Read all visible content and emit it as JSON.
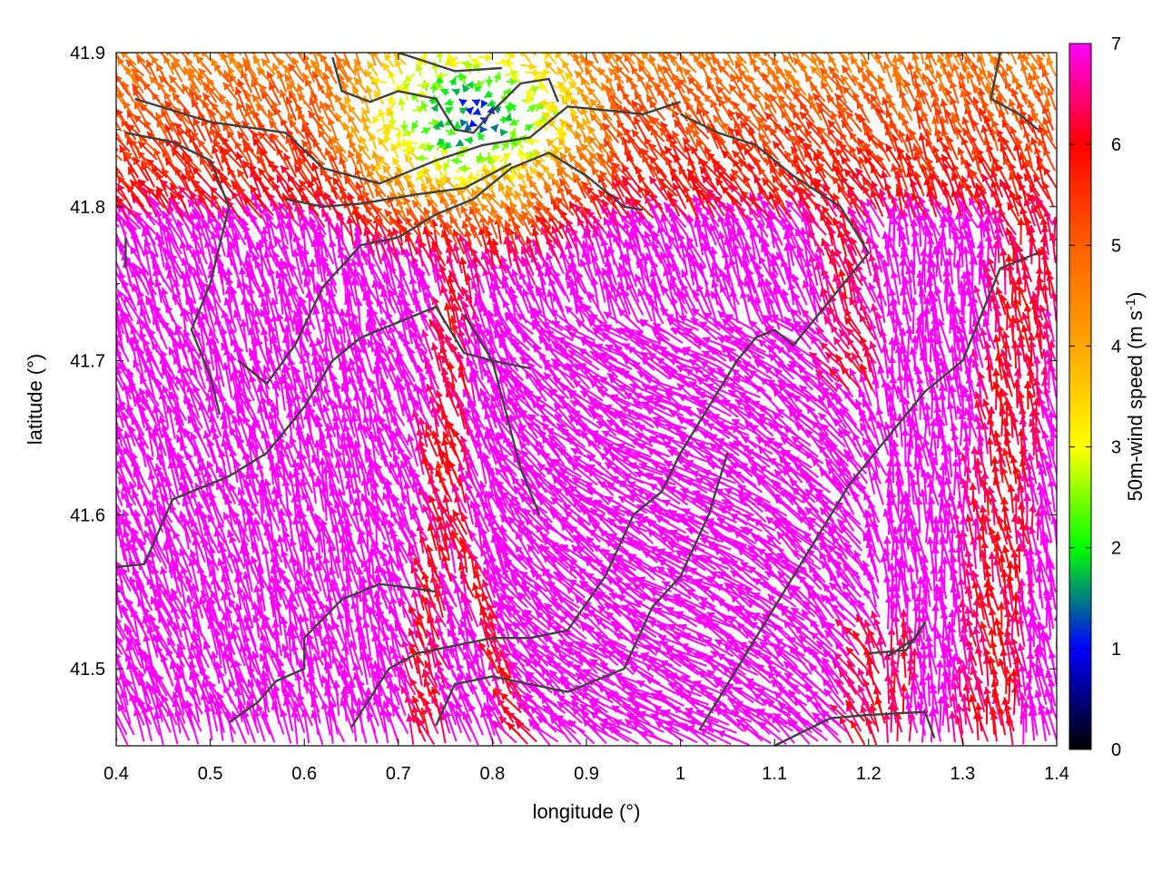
{
  "chart_data": {
    "type": "vector-field",
    "xlabel": "longitude (°)",
    "ylabel": "latitude (°)",
    "colorbar_label": {
      "main": "50m-wind speed (m s",
      "sup": "-1",
      "close": ")"
    },
    "xlim": [
      0.4,
      1.4
    ],
    "ylim": [
      41.45,
      41.9
    ],
    "xticks": [
      "0.4",
      "0.5",
      "0.6",
      "0.7",
      "0.8",
      "0.9",
      "1",
      "1.1",
      "1.2",
      "1.3",
      "1.4"
    ],
    "yticks": [
      "41.5",
      "41.6",
      "41.7",
      "41.8",
      "41.9"
    ],
    "cbticks": [
      "0",
      "1",
      "2",
      "3",
      "4",
      "5",
      "6",
      "7"
    ],
    "cbrange": [
      0,
      7
    ],
    "colormap": [
      "#000000",
      "#0000ff",
      "#00ff00",
      "#ffff00",
      "#ffa500",
      "#ff6000",
      "#ff0000",
      "#ff00ff"
    ],
    "contour_color": "#404040",
    "contours": [
      [
        [
          0.42,
          41.87
        ],
        [
          0.5,
          41.855
        ],
        [
          0.58,
          41.848
        ],
        [
          0.62,
          41.825
        ],
        [
          0.68,
          41.815
        ],
        [
          0.74,
          41.83
        ],
        [
          0.79,
          41.84
        ],
        [
          0.84,
          41.845
        ],
        [
          0.88,
          41.865
        ],
        [
          0.93,
          41.862
        ],
        [
          0.96,
          41.86
        ],
        [
          1.0,
          41.868
        ]
      ],
      [
        [
          0.41,
          41.848
        ],
        [
          0.46,
          41.842
        ],
        [
          0.5,
          41.83
        ],
        [
          0.52,
          41.8
        ],
        [
          0.5,
          41.75
        ],
        [
          0.48,
          41.72
        ],
        [
          0.5,
          41.69
        ],
        [
          0.51,
          41.665
        ]
      ],
      [
        [
          0.53,
          41.7
        ],
        [
          0.56,
          41.685
        ],
        [
          0.59,
          41.71
        ],
        [
          0.62,
          41.748
        ],
        [
          0.66,
          41.775
        ],
        [
          0.7,
          41.78
        ],
        [
          0.74,
          41.795
        ],
        [
          0.78,
          41.805
        ],
        [
          0.82,
          41.825
        ],
        [
          0.86,
          41.835
        ],
        [
          0.9,
          41.82
        ],
        [
          0.94,
          41.8
        ],
        [
          0.96,
          41.798
        ]
      ],
      [
        [
          0.58,
          41.805
        ],
        [
          0.62,
          41.8
        ],
        [
          0.66,
          41.802
        ],
        [
          0.72,
          41.808
        ],
        [
          0.77,
          41.812
        ],
        [
          0.82,
          41.828
        ]
      ],
      [
        [
          0.63,
          41.897
        ],
        [
          0.64,
          41.875
        ],
        [
          0.67,
          41.868
        ],
        [
          0.7,
          41.875
        ],
        [
          0.74,
          41.87
        ],
        [
          0.76,
          41.85
        ],
        [
          0.78,
          41.848
        ],
        [
          0.8,
          41.862
        ],
        [
          0.83,
          41.88
        ],
        [
          0.86,
          41.883
        ],
        [
          0.87,
          41.868
        ]
      ],
      [
        [
          0.7,
          41.9
        ],
        [
          0.76,
          41.888
        ],
        [
          0.81,
          41.89
        ]
      ],
      [
        [
          0.4,
          41.566
        ],
        [
          0.43,
          41.568
        ],
        [
          0.46,
          41.61
        ],
        [
          0.52,
          41.625
        ],
        [
          0.56,
          41.64
        ],
        [
          0.6,
          41.67
        ],
        [
          0.63,
          41.7
        ],
        [
          0.66,
          41.715
        ],
        [
          0.7,
          41.725
        ],
        [
          0.74,
          41.735
        ],
        [
          0.77,
          41.705
        ],
        [
          0.8,
          41.7
        ],
        [
          0.84,
          41.695
        ]
      ],
      [
        [
          0.52,
          41.465
        ],
        [
          0.55,
          41.478
        ],
        [
          0.57,
          41.492
        ],
        [
          0.6,
          41.5
        ],
        [
          0.6,
          41.52
        ],
        [
          0.64,
          41.545
        ],
        [
          0.68,
          41.555
        ],
        [
          0.72,
          41.552
        ],
        [
          0.74,
          41.55
        ]
      ],
      [
        [
          0.65,
          41.462
        ],
        [
          0.69,
          41.5
        ],
        [
          0.72,
          41.51
        ],
        [
          0.76,
          41.515
        ],
        [
          0.8,
          41.52
        ],
        [
          0.84,
          41.52
        ],
        [
          0.88,
          41.525
        ],
        [
          0.92,
          41.56
        ],
        [
          0.95,
          41.6
        ],
        [
          0.98,
          41.615
        ],
        [
          1.0,
          41.64
        ],
        [
          1.02,
          41.66
        ],
        [
          1.04,
          41.68
        ],
        [
          1.06,
          41.7
        ],
        [
          1.08,
          41.715
        ],
        [
          1.1,
          41.72
        ],
        [
          1.12,
          41.71
        ],
        [
          1.16,
          41.74
        ],
        [
          1.2,
          41.77
        ],
        [
          1.17,
          41.8
        ],
        [
          1.12,
          41.82
        ],
        [
          1.08,
          41.84
        ],
        [
          1.04,
          41.848
        ],
        [
          1.0,
          41.86
        ]
      ],
      [
        [
          0.85,
          41.6
        ],
        [
          0.83,
          41.63
        ],
        [
          0.8,
          41.7
        ],
        [
          0.77,
          41.73
        ]
      ],
      [
        [
          0.74,
          41.463
        ],
        [
          0.76,
          41.49
        ],
        [
          0.8,
          41.495
        ],
        [
          0.84,
          41.49
        ],
        [
          0.88,
          41.485
        ],
        [
          0.94,
          41.5
        ],
        [
          0.97,
          41.54
        ],
        [
          1.0,
          41.56
        ],
        [
          1.03,
          41.6
        ],
        [
          1.05,
          41.64
        ]
      ],
      [
        [
          1.02,
          41.46
        ],
        [
          1.06,
          41.5
        ],
        [
          1.1,
          41.54
        ],
        [
          1.14,
          41.58
        ],
        [
          1.18,
          41.62
        ],
        [
          1.22,
          41.65
        ],
        [
          1.26,
          41.68
        ],
        [
          1.3,
          41.7
        ],
        [
          1.32,
          41.73
        ],
        [
          1.34,
          41.76
        ],
        [
          1.38,
          41.77
        ]
      ],
      [
        [
          1.1,
          41.45
        ],
        [
          1.16,
          41.468
        ],
        [
          1.2,
          41.47
        ],
        [
          1.26,
          41.472
        ],
        [
          1.27,
          41.455
        ]
      ],
      [
        [
          1.2,
          41.51
        ],
        [
          1.24,
          41.512
        ],
        [
          1.26,
          41.53
        ],
        [
          1.25,
          41.52
        ],
        [
          1.22,
          41.508
        ]
      ],
      [
        [
          1.34,
          41.9
        ],
        [
          1.33,
          41.87
        ],
        [
          1.36,
          41.86
        ],
        [
          1.38,
          41.85
        ]
      ],
      [
        [
          0.41,
          41.76
        ],
        [
          0.41,
          41.78
        ]
      ]
    ],
    "arrow_spacing": {
      "dx": 0.012,
      "dy": 0.0062
    },
    "field_model": {
      "ridges": [
        {
          "lon": [
            [
              41.45,
              0.73
            ],
            [
              41.55,
              0.74
            ],
            [
              41.62,
              0.76
            ],
            [
              41.7,
              0.76
            ],
            [
              41.76,
              0.77
            ]
          ],
          "width": 0.028,
          "speed": 6.1
        },
        {
          "lon": [
            [
              41.45,
              0.84
            ],
            [
              41.52,
              0.8
            ],
            [
              41.58,
              0.77
            ],
            [
              41.63,
              0.74
            ]
          ],
          "width": 0.02,
          "speed": 6.0
        },
        {
          "lon": [
            [
              41.45,
              1.33
            ],
            [
              41.6,
              1.34
            ],
            [
              41.75,
              1.37
            ],
            [
              41.9,
              1.38
            ]
          ],
          "width": 0.05,
          "speed": 6.1
        },
        {
          "lon": [
            [
              41.45,
              1.21
            ],
            [
              41.5,
              1.22
            ]
          ],
          "width": 0.05,
          "speed": 6.2
        },
        {
          "lon": [
            [
              41.7,
              1.19
            ],
            [
              41.8,
              1.17
            ],
            [
              41.9,
              1.15
            ]
          ],
          "width": 0.04,
          "speed": 6.2
        }
      ],
      "calm_zone": {
        "lon": 0.78,
        "lat": 41.86,
        "rx": 0.16,
        "ry": 0.075,
        "min_speed": 1.0
      }
    }
  }
}
